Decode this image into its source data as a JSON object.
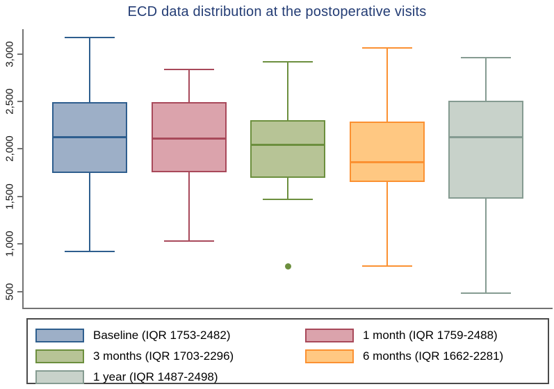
{
  "title_color": "#233C74",
  "axis_color": "#737373",
  "tick_label_color": "#141414",
  "legend_border_color": "#4A4A4A",
  "chart_data": {
    "type": "box",
    "title": "ECD data distribution at the postoperative visits",
    "xlabel": "",
    "ylabel": "",
    "yticks": [
      500,
      1000,
      1500,
      2000,
      2500,
      3000
    ],
    "ytick_labels": [
      "500",
      "1,000",
      "1,500",
      "2,000",
      "2,500",
      "3,000"
    ],
    "ylim": [
      330,
      3260
    ],
    "grid": false,
    "legend_position": "bottom",
    "categories": [
      "Baseline",
      "1 month",
      "3 months",
      "6 months",
      "1 year"
    ],
    "series": [
      {
        "key": "baseline",
        "name": "Baseline (IQR 1753-2482)",
        "category": "Baseline",
        "q1": 1753,
        "median": 2125,
        "q3": 2482,
        "whisker_low": 925,
        "whisker_high": 3175,
        "outliers": [],
        "fill": "#9DAFC7",
        "stroke": "#2E5E8E"
      },
      {
        "key": "1-month",
        "name": "1 month (IQR 1759-2488)",
        "category": "1 month",
        "q1": 1759,
        "median": 2110,
        "q3": 2488,
        "whisker_low": 1030,
        "whisker_high": 2835,
        "outliers": [],
        "fill": "#DBA3AC",
        "stroke": "#A8495A"
      },
      {
        "key": "3-months",
        "name": "3 months (IQR 1703-2296)",
        "category": "3 months",
        "q1": 1703,
        "median": 2040,
        "q3": 2296,
        "whisker_low": 1470,
        "whisker_high": 2920,
        "outliers": [
          765
        ],
        "fill": "#B7C496",
        "stroke": "#6C8F3E"
      },
      {
        "key": "6-months",
        "name": "6 months (IQR 1662-2281)",
        "category": "6 months",
        "q1": 1662,
        "median": 1860,
        "q3": 2281,
        "whisker_low": 765,
        "whisker_high": 3060,
        "outliers": [],
        "fill": "#FFC882",
        "stroke": "#FB9132"
      },
      {
        "key": "1-year",
        "name": "1 year (IQR 1487-2498)",
        "category": "1 year",
        "q1": 1487,
        "median": 2125,
        "q3": 2498,
        "whisker_low": 480,
        "whisker_high": 2960,
        "outliers": [],
        "fill": "#C8D2CA",
        "stroke": "#859B91"
      }
    ]
  }
}
